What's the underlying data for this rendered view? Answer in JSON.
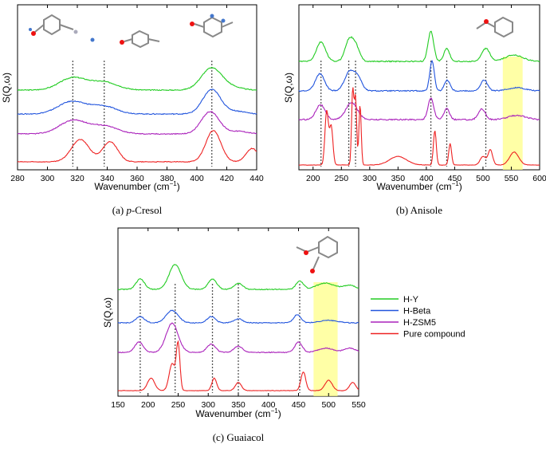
{
  "captions": {
    "a_prefix": "(a)",
    "a_italic": "p",
    "a_rest": "-Cresol",
    "b": "(b) Anisole",
    "c": "(c) Guaiacol"
  },
  "legend": {
    "entries": [
      "H-Y",
      "H-Beta",
      "H-ZSM5",
      "Pure compound"
    ],
    "colors": [
      "#22cc22",
      "#2255dd",
      "#aa22bb",
      "#ee2222"
    ]
  },
  "chart_data": [
    {
      "panel": "a",
      "type": "line",
      "xlabel": "Wavenumber (cm",
      "xlabel_sup": "−1",
      "xlabel_end": ")",
      "ylabel": "S(Q,ω)",
      "xlim": [
        280,
        440
      ],
      "xticks": [
        280,
        300,
        320,
        340,
        360,
        380,
        400,
        420,
        440
      ],
      "dashed_lines": [
        317,
        338,
        410
      ],
      "highlight": null,
      "series": [
        {
          "key": "hy",
          "color": "#22cc22",
          "offset": 3,
          "peaks": [
            [
              317,
              0.55,
              9
            ],
            [
              338,
              0.35,
              9
            ],
            [
              410,
              1.0,
              7
            ],
            [
              425,
              0.1,
              6
            ]
          ],
          "noise": 0.04
        },
        {
          "key": "hb",
          "color": "#2255dd",
          "offset": 2,
          "peaks": [
            [
              316,
              0.55,
              9
            ],
            [
              337,
              0.35,
              9
            ],
            [
              410,
              1.1,
              6
            ],
            [
              427,
              0.12,
              6
            ]
          ],
          "noise": 0.04
        },
        {
          "key": "hz",
          "color": "#aa22bb",
          "offset": 1,
          "peaks": [
            [
              317,
              0.6,
              9
            ],
            [
              338,
              0.35,
              9
            ],
            [
              409,
              1.0,
              6
            ],
            [
              428,
              0.12,
              6
            ]
          ],
          "noise": 0.04
        },
        {
          "key": "pure",
          "color": "#ee2222",
          "offset": 0,
          "peaks": [
            [
              322,
              1.0,
              6
            ],
            [
              342,
              0.9,
              5
            ],
            [
              411,
              1.4,
              5
            ],
            [
              437,
              0.6,
              4
            ]
          ],
          "noise": 0.03
        }
      ]
    },
    {
      "panel": "b",
      "type": "line",
      "xlabel": "Wavenumber (cm",
      "xlabel_sup": "−1",
      "xlabel_end": ")",
      "ylabel": "S(Q,ω)",
      "xlim": [
        175,
        600
      ],
      "xticks": [
        200,
        250,
        300,
        350,
        400,
        450,
        500,
        550,
        600
      ],
      "dashed_lines": [
        214,
        263,
        275,
        408,
        436,
        505
      ],
      "highlight": [
        535,
        570
      ],
      "series": [
        {
          "key": "hy",
          "color": "#22cc22",
          "offset": 3,
          "peaks": [
            [
              214,
              0.9,
              8
            ],
            [
              263,
              0.9,
              7
            ],
            [
              275,
              0.7,
              7
            ],
            [
              408,
              1.4,
              5
            ],
            [
              436,
              0.6,
              5
            ],
            [
              505,
              0.6,
              7
            ],
            [
              555,
              0.3,
              15
            ]
          ],
          "noise": 0.05
        },
        {
          "key": "hb",
          "color": "#2255dd",
          "offset": 2,
          "peaks": [
            [
              212,
              0.8,
              8
            ],
            [
              265,
              0.9,
              9
            ],
            [
              280,
              0.5,
              7
            ],
            [
              410,
              1.4,
              4
            ],
            [
              437,
              0.5,
              5
            ],
            [
              502,
              0.5,
              6
            ],
            [
              560,
              0.15,
              15
            ]
          ],
          "noise": 0.05
        },
        {
          "key": "hz",
          "color": "#aa22bb",
          "offset": 1,
          "peaks": [
            [
              213,
              0.7,
              8
            ],
            [
              268,
              0.8,
              10
            ],
            [
              408,
              1.0,
              5
            ],
            [
              436,
              0.5,
              5
            ],
            [
              498,
              0.5,
              6
            ],
            [
              560,
              0.2,
              15
            ]
          ],
          "noise": 0.06
        },
        {
          "key": "pure",
          "color": "#ee2222",
          "offset": 0,
          "peaks": [
            [
              224,
              2.5,
              3
            ],
            [
              232,
              1.8,
              3
            ],
            [
              270,
              3.5,
              2
            ],
            [
              275,
              3.1,
              2
            ],
            [
              283,
              2.8,
              2
            ],
            [
              350,
              0.4,
              15
            ],
            [
              415,
              1.6,
              2.5
            ],
            [
              442,
              1.0,
              2.5
            ],
            [
              500,
              0.4,
              5
            ],
            [
              513,
              0.7,
              4
            ],
            [
              555,
              0.6,
              8
            ]
          ],
          "noise": 0.02
        }
      ]
    },
    {
      "panel": "c",
      "type": "line",
      "xlabel": "Wavenumber (cm",
      "xlabel_sup": "−1",
      "xlabel_end": ")",
      "ylabel": "S(Q,ω)",
      "xlim": [
        150,
        550
      ],
      "xticks": [
        150,
        200,
        250,
        300,
        350,
        400,
        450,
        500,
        550
      ],
      "dashed_lines": [
        187,
        245,
        307,
        350,
        452
      ],
      "highlight": [
        475,
        515
      ],
      "series": [
        {
          "key": "hy",
          "color": "#22cc22",
          "offset": 3,
          "peaks": [
            [
              187,
              0.5,
              7
            ],
            [
              245,
              1.2,
              10
            ],
            [
              307,
              0.5,
              7
            ],
            [
              350,
              0.3,
              7
            ],
            [
              452,
              0.4,
              6
            ],
            [
              495,
              0.3,
              15
            ],
            [
              535,
              0.2,
              10
            ]
          ],
          "noise": 0.04
        },
        {
          "key": "hb",
          "color": "#2255dd",
          "offset": 2,
          "peaks": [
            [
              187,
              0.3,
              7
            ],
            [
              240,
              0.6,
              10
            ],
            [
              305,
              0.3,
              7
            ],
            [
              350,
              0.2,
              7
            ],
            [
              448,
              0.4,
              6
            ],
            [
              500,
              0.12,
              15
            ]
          ],
          "noise": 0.04
        },
        {
          "key": "hz",
          "color": "#aa22bb",
          "offset": 1,
          "peaks": [
            [
              185,
              0.5,
              7
            ],
            [
              240,
              1.4,
              10
            ],
            [
              305,
              0.4,
              7
            ],
            [
              350,
              0.3,
              7
            ],
            [
              450,
              0.5,
              6
            ],
            [
              495,
              0.2,
              12
            ],
            [
              535,
              0.2,
              10
            ]
          ],
          "noise": 0.04
        },
        {
          "key": "pure",
          "color": "#ee2222",
          "offset": 0,
          "peaks": [
            [
              205,
              0.6,
              6
            ],
            [
              240,
              1.3,
              5
            ],
            [
              250,
              2.2,
              3
            ],
            [
              310,
              0.6,
              4
            ],
            [
              350,
              0.4,
              5
            ],
            [
              458,
              0.9,
              4
            ],
            [
              500,
              0.5,
              6
            ],
            [
              540,
              0.4,
              5
            ]
          ],
          "noise": 0.02
        }
      ]
    }
  ]
}
